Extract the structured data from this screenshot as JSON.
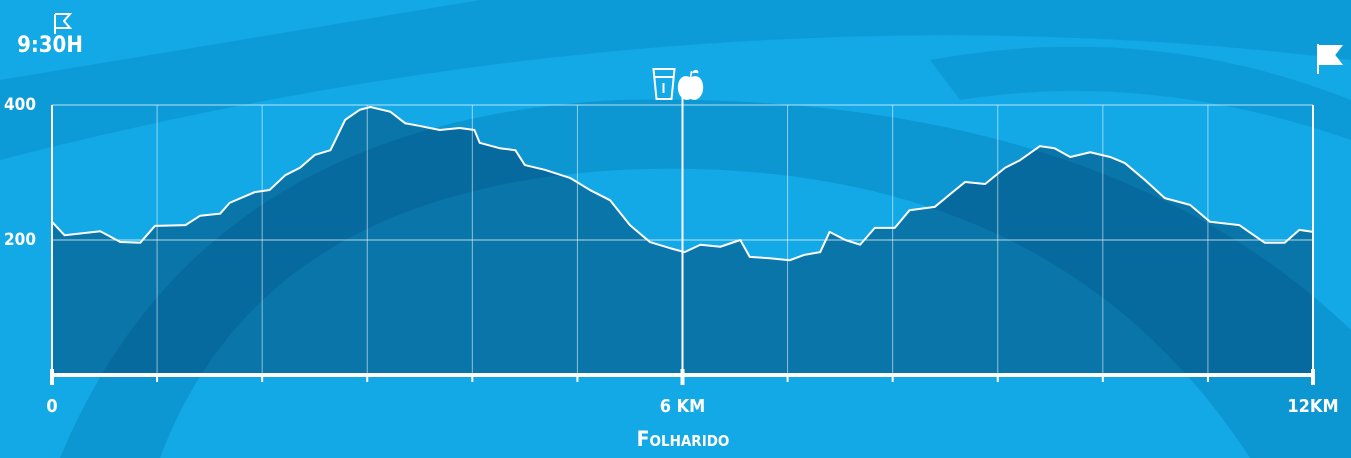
{
  "chart_data": {
    "type": "area",
    "duration": "9:30H",
    "location": "Folharido",
    "x": [
      0,
      0.12,
      0.46,
      0.65,
      0.84,
      0.98,
      1.27,
      1.41,
      1.6,
      1.69,
      1.93,
      2.07,
      2.22,
      2.36,
      2.5,
      2.65,
      2.79,
      2.93,
      3.03,
      3.22,
      3.36,
      3.5,
      3.69,
      3.88,
      4.02,
      4.07,
      4.26,
      4.41,
      4.5,
      4.69,
      4.93,
      5.12,
      5.31,
      5.5,
      5.69,
      5.88,
      6.02,
      6.17,
      6.36,
      6.55,
      6.64,
      6.83,
      7.02,
      7.16,
      7.31,
      7.4,
      7.55,
      7.69,
      7.83,
      8.02,
      8.16,
      8.4,
      8.54,
      8.69,
      8.88,
      9.07,
      9.21,
      9.4,
      9.54,
      9.69,
      9.88,
      10.07,
      10.21,
      10.4,
      10.59,
      10.83,
      11.02,
      11.3,
      11.54,
      11.73,
      11.87,
      12
    ],
    "values": [
      227,
      207,
      213,
      197,
      196,
      221,
      222,
      236,
      239,
      255,
      271,
      274,
      296,
      307,
      326,
      333,
      378,
      393,
      397,
      390,
      373,
      369,
      363,
      366,
      363,
      344,
      336,
      333,
      311,
      304,
      292,
      274,
      259,
      222,
      197,
      188,
      182,
      193,
      190,
      200,
      175,
      173,
      170,
      178,
      182,
      212,
      200,
      193,
      218,
      218,
      244,
      249,
      267,
      286,
      283,
      307,
      318,
      339,
      336,
      323,
      330,
      323,
      314,
      289,
      262,
      252,
      227,
      222,
      196,
      196,
      215,
      212
    ],
    "color": "#ffffff",
    "xlim": [
      0,
      12
    ],
    "xticks": [
      0,
      {
        "value": 6,
        "label": "6 KM"
      },
      {
        "value": 12,
        "label": "12KM"
      }
    ],
    "xminor_ticks": [
      1,
      2,
      3,
      4,
      5,
      7,
      8,
      9,
      10,
      11
    ],
    "ylim": [
      0,
      400
    ],
    "yticks": [
      200,
      400
    ],
    "grid": true
  }
}
